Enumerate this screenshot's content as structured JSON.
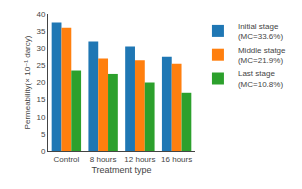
{
  "chart_data": {
    "type": "bar",
    "xlabel": "Treatment type",
    "ylabel": "Permeability(× 10⁻¹ darcy)",
    "categories": [
      "Control",
      "8 hours",
      "12 hours",
      "16 hours"
    ],
    "series": [
      {
        "name": "Initial stage\n(MC=33.6%)",
        "values": [
          37.5,
          32.0,
          30.5,
          27.5
        ]
      },
      {
        "name": "Middle statge\n(MC=21.9%)",
        "values": [
          36.0,
          27.0,
          26.5,
          25.5
        ]
      },
      {
        "name": "Last stage\n(MC=10.8%)",
        "values": [
          23.5,
          22.5,
          20.0,
          17.0
        ]
      }
    ],
    "ylim": [
      0,
      40
    ],
    "yticks": [
      0,
      5,
      10,
      15,
      20,
      25,
      30,
      35,
      40
    ],
    "grid": false,
    "legend": "right"
  }
}
